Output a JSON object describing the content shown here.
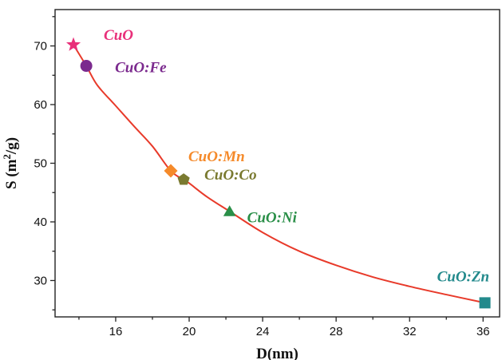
{
  "chart_data": {
    "type": "scatter",
    "title": "",
    "xlabel": "D(nm)",
    "ylabel_main": "S (m",
    "ylabel_sup": "2",
    "ylabel_tail": "/g)",
    "xlim": [
      12.7,
      36.9
    ],
    "ylim": [
      23.8,
      76.2
    ],
    "xticks": [
      16,
      20,
      24,
      28,
      32,
      36
    ],
    "yticks": [
      30,
      40,
      50,
      60,
      70
    ],
    "grid": false,
    "legend": "none",
    "series": [
      {
        "name": "CuO",
        "x": 13.7,
        "y": 70.2,
        "marker": "star",
        "color": "#e8307a",
        "label": "CuO"
      },
      {
        "name": "CuO:Fe",
        "x": 14.4,
        "y": 66.6,
        "marker": "circle",
        "color": "#7b2a8e",
        "label": "CuO:Fe"
      },
      {
        "name": "CuO:Mn",
        "x": 19.0,
        "y": 48.7,
        "marker": "diamond",
        "color": "#f58a2a",
        "label": "CuO:Mn"
      },
      {
        "name": "CuO:Co",
        "x": 19.7,
        "y": 47.2,
        "marker": "pentagon",
        "color": "#7a7a30",
        "label": "CuO:Co"
      },
      {
        "name": "CuO:Ni",
        "x": 22.2,
        "y": 41.8,
        "marker": "triangle",
        "color": "#2a8f48",
        "label": "CuO:Ni"
      },
      {
        "name": "CuO:Zn",
        "x": 36.1,
        "y": 26.2,
        "marker": "square",
        "color": "#238a8c",
        "label": "CuO:Zn"
      }
    ],
    "fit": {
      "color": "#e83a2a",
      "x": [
        13.7,
        14.4,
        15,
        16,
        17,
        18,
        19,
        19.7,
        20,
        21,
        22.2,
        24,
        26,
        28,
        30,
        32,
        34,
        36.1
      ],
      "y": [
        70.2,
        66.6,
        63.3,
        59.8,
        56.3,
        52.9,
        48.7,
        47.2,
        46.6,
        44.2,
        41.8,
        38.2,
        35.0,
        32.6,
        30.6,
        29.0,
        27.6,
        26.2
      ]
    }
  }
}
